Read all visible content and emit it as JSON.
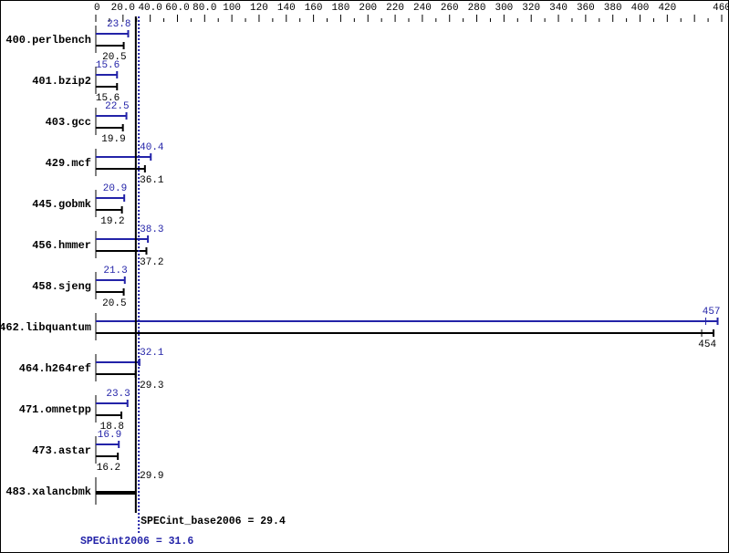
{
  "chart_data": {
    "type": "bar",
    "orientation": "horizontal",
    "xlim": [
      0,
      460
    ],
    "ticks": {
      "labels": [
        "0",
        "20.0",
        "40.0",
        "60.0",
        "80.0",
        "100",
        "120",
        "140",
        "160",
        "180",
        "200",
        "220",
        "240",
        "260",
        "280",
        "300",
        "320",
        "340",
        "360",
        "380",
        "400",
        "420",
        "460"
      ],
      "values": [
        0,
        20,
        40,
        60,
        80,
        100,
        120,
        140,
        160,
        180,
        200,
        220,
        240,
        260,
        280,
        300,
        320,
        340,
        360,
        380,
        400,
        420,
        460
      ],
      "minor_step": 10
    },
    "categories": [
      "400.perlbench",
      "401.bzip2",
      "403.gcc",
      "429.mcf",
      "445.gobmk",
      "456.hmmer",
      "458.sjeng",
      "462.libquantum",
      "464.h264ref",
      "471.omnetpp",
      "473.astar",
      "483.xalancbmk"
    ],
    "series": [
      {
        "name": "SPECint2006",
        "color": "#2323a8",
        "values": [
          23.8,
          15.6,
          22.5,
          40.4,
          20.9,
          38.3,
          21.3,
          457,
          32.1,
          23.3,
          16.9,
          null
        ]
      },
      {
        "name": "SPECint_base2006",
        "color": "#000000",
        "values": [
          20.5,
          15.6,
          19.9,
          36.1,
          19.2,
          37.2,
          20.5,
          454,
          29.3,
          18.8,
          16.2,
          29.9
        ]
      }
    ],
    "summary": {
      "base_label": "SPECint_base2006 = 29.4",
      "base_value": 29.4,
      "peak_label": "SPECint2006 = 31.6",
      "peak_value": 31.6
    }
  }
}
